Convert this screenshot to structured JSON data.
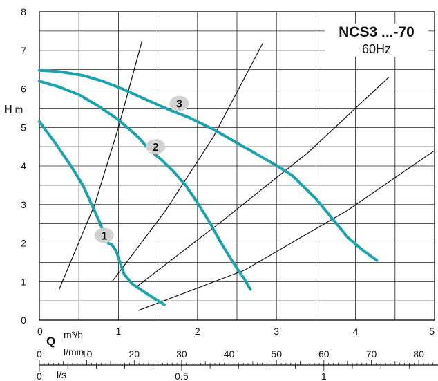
{
  "chart_data": {
    "type": "line",
    "title": "NCS3 ...-70",
    "subtitle": "60Hz",
    "ylabel_symbol": "H",
    "ylabel_unit": "m",
    "xlabel_symbol": "Q",
    "ylim": [
      0,
      8
    ],
    "y_ticks": [
      "0",
      "1",
      "2",
      "3",
      "4",
      "5",
      "6",
      "7",
      "8"
    ],
    "x_axes": [
      {
        "unit": "m³/h",
        "range": [
          0,
          5
        ],
        "ticks": [
          "0",
          "1",
          "2",
          "3",
          "4",
          "5"
        ]
      },
      {
        "unit": "l/min",
        "range": [
          0,
          83.333
        ],
        "ticks": [
          "0",
          "10",
          "20",
          "30",
          "40",
          "50",
          "60",
          "70",
          "80"
        ]
      },
      {
        "unit": "l/s",
        "range": [
          0,
          1.389
        ],
        "ticks": [
          "0",
          "0.5",
          "1"
        ]
      }
    ],
    "grid": true,
    "series": [
      {
        "name": "1",
        "color": "#1ba3ad",
        "x": [
          0.0,
          0.2,
          0.4,
          0.55,
          0.65,
          0.75,
          0.87,
          0.92,
          0.97,
          1.02,
          1.07,
          1.17,
          1.35,
          1.58
        ],
        "y": [
          5.15,
          4.6,
          4.0,
          3.5,
          3.05,
          2.6,
          2.0,
          1.95,
          1.8,
          1.5,
          1.2,
          0.95,
          0.7,
          0.4
        ]
      },
      {
        "name": "2",
        "color": "#1ba3ad",
        "x": [
          0.0,
          0.25,
          0.5,
          0.75,
          1.0,
          1.25,
          1.4,
          1.55,
          1.7,
          1.85,
          2.0,
          2.15,
          2.3,
          2.45,
          2.6,
          2.67
        ],
        "y": [
          6.2,
          6.05,
          5.85,
          5.55,
          5.2,
          4.75,
          4.4,
          4.15,
          3.85,
          3.5,
          3.05,
          2.55,
          2.0,
          1.5,
          1.05,
          0.8
        ]
      },
      {
        "name": "3",
        "color": "#1ba3ad",
        "x": [
          0.0,
          0.25,
          0.55,
          0.8,
          1.05,
          1.35,
          1.65,
          1.9,
          2.2,
          2.5,
          2.8,
          3.05,
          3.2,
          3.35,
          3.5,
          3.7,
          3.9,
          4.1,
          4.27
        ],
        "y": [
          6.48,
          6.45,
          6.35,
          6.2,
          6.0,
          5.72,
          5.45,
          5.25,
          4.95,
          4.6,
          4.25,
          3.95,
          3.75,
          3.45,
          3.15,
          2.65,
          2.15,
          1.8,
          1.55
        ]
      }
    ],
    "label_positions": [
      {
        "name": "1",
        "x": 0.82,
        "y": 2.2
      },
      {
        "name": "2",
        "x": 1.47,
        "y": 4.5
      },
      {
        "name": "3",
        "x": 1.77,
        "y": 5.62
      }
    ],
    "system_curves": [
      {
        "x": [
          0.25,
          0.7,
          1.0,
          1.3
        ],
        "y": [
          0.8,
          3.0,
          5.0,
          7.25
        ]
      },
      {
        "x": [
          0.92,
          1.6,
          2.2,
          2.83
        ],
        "y": [
          1.0,
          2.85,
          4.75,
          7.2
        ]
      },
      {
        "x": [
          1.22,
          2.3,
          3.4,
          4.42
        ],
        "y": [
          0.85,
          2.55,
          4.35,
          6.3
        ]
      },
      {
        "x": [
          1.25,
          2.6,
          3.9,
          5.0
        ],
        "y": [
          0.25,
          1.3,
          2.85,
          4.4
        ]
      }
    ],
    "colors": {
      "curve": "#1ba3ad",
      "grid": "#222222",
      "label_bubble": "#d2d2d2"
    }
  }
}
